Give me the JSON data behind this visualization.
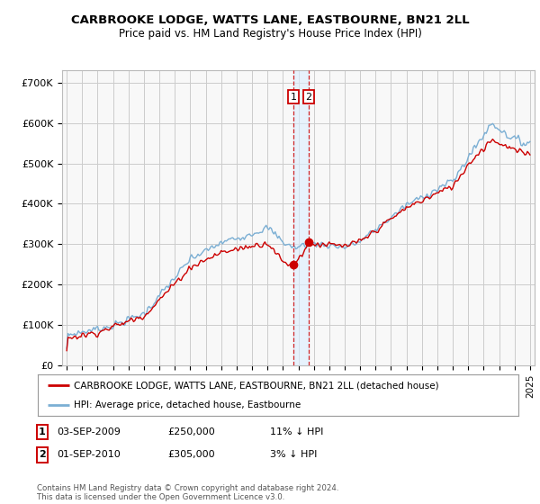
{
  "title": "CARBROOKE LODGE, WATTS LANE, EASTBOURNE, BN21 2LL",
  "subtitle": "Price paid vs. HM Land Registry's House Price Index (HPI)",
  "legend_label_red": "CARBROOKE LODGE, WATTS LANE, EASTBOURNE, BN21 2LL (detached house)",
  "legend_label_blue": "HPI: Average price, detached house, Eastbourne",
  "transaction1_label": "1",
  "transaction1_date": "03-SEP-2009",
  "transaction1_price": "£250,000",
  "transaction1_hpi": "11% ↓ HPI",
  "transaction2_label": "2",
  "transaction2_date": "01-SEP-2010",
  "transaction2_price": "£305,000",
  "transaction2_hpi": "3% ↓ HPI",
  "footer": "Contains HM Land Registry data © Crown copyright and database right 2024.\nThis data is licensed under the Open Government Licence v3.0.",
  "ylabel_ticks": [
    "£0",
    "£100K",
    "£200K",
    "£300K",
    "£400K",
    "£500K",
    "£600K",
    "£700K"
  ],
  "ylabel_values": [
    0,
    100000,
    200000,
    300000,
    400000,
    500000,
    600000,
    700000
  ],
  "ylim": [
    0,
    730000
  ],
  "xlim_min": 1994.7,
  "xlim_max": 2025.3,
  "color_red": "#cc0000",
  "color_blue": "#7bafd4",
  "color_grid": "#cccccc",
  "color_bg": "#f8f8f8",
  "color_shade": "#ddeeff",
  "t1_x": 2009.67,
  "t2_x": 2010.67,
  "t1_y": 250000,
  "t2_y": 305000,
  "x_tick_start": 1995,
  "x_tick_end": 2025
}
